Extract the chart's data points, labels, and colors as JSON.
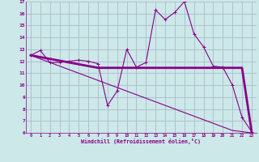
{
  "x": [
    0,
    1,
    2,
    3,
    4,
    5,
    6,
    7,
    8,
    9,
    10,
    11,
    12,
    13,
    14,
    15,
    16,
    17,
    18,
    19,
    20,
    21,
    22,
    23
  ],
  "curve1": [
    12.5,
    12.9,
    11.9,
    11.9,
    12.0,
    12.1,
    12.0,
    11.8,
    8.3,
    9.5,
    13.0,
    11.5,
    11.9,
    16.3,
    15.5,
    16.1,
    17.0,
    14.3,
    13.2,
    11.6,
    11.5,
    10.0,
    7.3,
    6.1
  ],
  "curve2": [
    12.5,
    12.35,
    12.2,
    12.05,
    11.9,
    11.75,
    11.6,
    11.45,
    11.45,
    11.45,
    11.45,
    11.45,
    11.45,
    11.45,
    11.45,
    11.45,
    11.45,
    11.45,
    11.45,
    11.45,
    11.45,
    11.45,
    11.45,
    6.1
  ],
  "curve3": [
    12.5,
    12.2,
    11.9,
    11.6,
    11.3,
    11.0,
    10.7,
    10.4,
    10.1,
    9.8,
    9.5,
    9.2,
    8.9,
    8.6,
    8.3,
    8.0,
    7.7,
    7.4,
    7.1,
    6.8,
    6.5,
    6.2,
    6.1,
    6.0
  ],
  "color": "#880088",
  "bg_color": "#cce8e8",
  "grid_color": "#aabbcc",
  "ylim": [
    6,
    17
  ],
  "xlim": [
    0,
    23
  ],
  "yticks": [
    6,
    7,
    8,
    9,
    10,
    11,
    12,
    13,
    14,
    15,
    16,
    17
  ],
  "xticks": [
    0,
    1,
    2,
    3,
    4,
    5,
    6,
    7,
    8,
    9,
    10,
    11,
    12,
    13,
    14,
    15,
    16,
    17,
    18,
    19,
    20,
    21,
    22,
    23
  ],
  "xlabel": "Windchill (Refroidissement éolien,°C)"
}
